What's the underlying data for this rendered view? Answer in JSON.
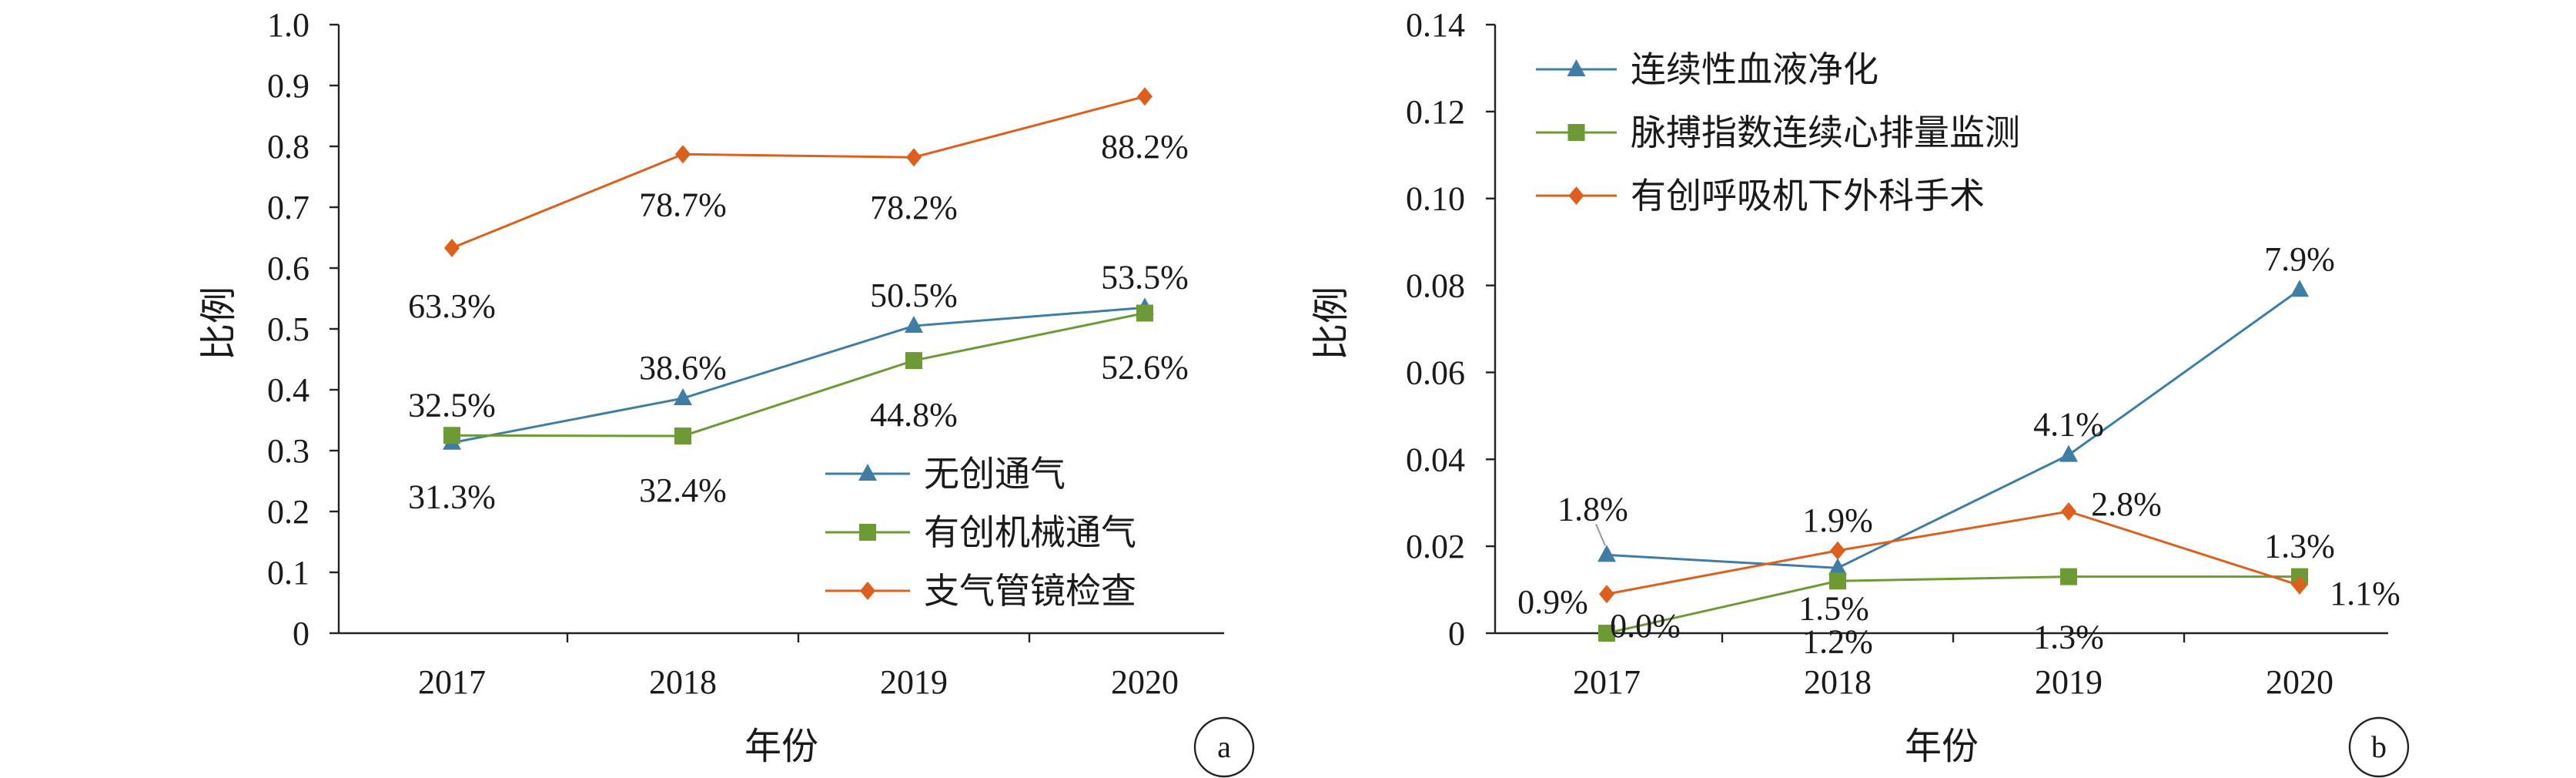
{
  "colors": {
    "blue": "#3f7da4",
    "green": "#6d9a35",
    "orange": "#dd5f1c",
    "axis": "#222222"
  },
  "chart_data": [
    {
      "type": "line",
      "panel": "a",
      "categories": [
        "2017",
        "2018",
        "2019",
        "2020"
      ],
      "xlabel": "年份",
      "ylabel": "比例",
      "ylim": [
        0,
        1.0
      ],
      "yticks": [
        "0",
        "0.1",
        "0.2",
        "0.3",
        "0.4",
        "0.5",
        "0.6",
        "0.7",
        "0.8",
        "0.9",
        "1.0"
      ],
      "legend_position": "bottom-right",
      "series": [
        {
          "name": "无创通气",
          "marker": "triangle",
          "color": "#3f7da4",
          "values": [
            0.313,
            0.386,
            0.505,
            0.535
          ],
          "labels": [
            "31.3%",
            "38.6%",
            "50.5%",
            "53.5%"
          ]
        },
        {
          "name": "有创机械通气",
          "marker": "square",
          "color": "#6d9a35",
          "values": [
            0.325,
            0.324,
            0.448,
            0.526
          ],
          "labels": [
            "32.5%",
            "32.4%",
            "44.8%",
            "52.6%"
          ]
        },
        {
          "name": "支气管镜检查",
          "marker": "diamond",
          "color": "#dd5f1c",
          "values": [
            0.633,
            0.787,
            0.782,
            0.882
          ],
          "labels": [
            "63.3%",
            "78.7%",
            "78.2%",
            "88.2%"
          ]
        }
      ]
    },
    {
      "type": "line",
      "panel": "b",
      "categories": [
        "2017",
        "2018",
        "2019",
        "2020"
      ],
      "xlabel": "年份",
      "ylabel": "比例",
      "ylim": [
        0,
        0.14
      ],
      "yticks": [
        "0",
        "0.02",
        "0.04",
        "0.06",
        "0.08",
        "0.10",
        "0.12",
        "0.14"
      ],
      "legend_position": "top-left",
      "series": [
        {
          "name": "连续性血液净化",
          "marker": "triangle",
          "color": "#3f7da4",
          "values": [
            0.018,
            0.015,
            0.041,
            0.079
          ],
          "labels": [
            "1.8%",
            "1.5%",
            "4.1%",
            "7.9%"
          ]
        },
        {
          "name": "脉搏指数连续心排量监测",
          "marker": "square",
          "color": "#6d9a35",
          "values": [
            0.0,
            0.012,
            0.013,
            0.013
          ],
          "labels": [
            "0.0%",
            "1.2%",
            "1.3%",
            "1.3%"
          ]
        },
        {
          "name": "有创呼吸机下外科手术",
          "marker": "diamond",
          "color": "#dd5f1c",
          "values": [
            0.009,
            0.019,
            0.028,
            0.011
          ],
          "labels": [
            "0.9%",
            "1.9%",
            "2.8%",
            "1.1%"
          ]
        }
      ]
    }
  ]
}
